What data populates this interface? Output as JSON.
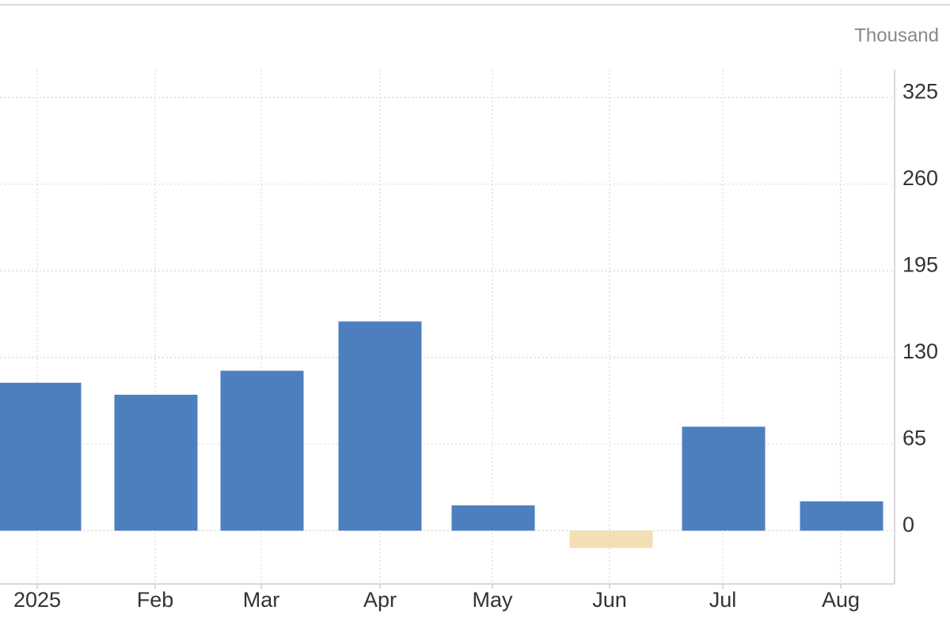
{
  "chart_data": {
    "type": "bar",
    "unit_label": "Thousand",
    "categories": [
      "2025",
      "Feb",
      "Mar",
      "Apr",
      "May",
      "Jun",
      "Jul",
      "Aug"
    ],
    "values": [
      111,
      102,
      120,
      157,
      19,
      -13,
      78,
      22
    ],
    "color": "#4d7fbf",
    "negative_color": "#f4deb4",
    "ylim": [
      -40,
      346
    ],
    "yticks": [
      0,
      65,
      130,
      195,
      260,
      325
    ],
    "grid": true
  }
}
